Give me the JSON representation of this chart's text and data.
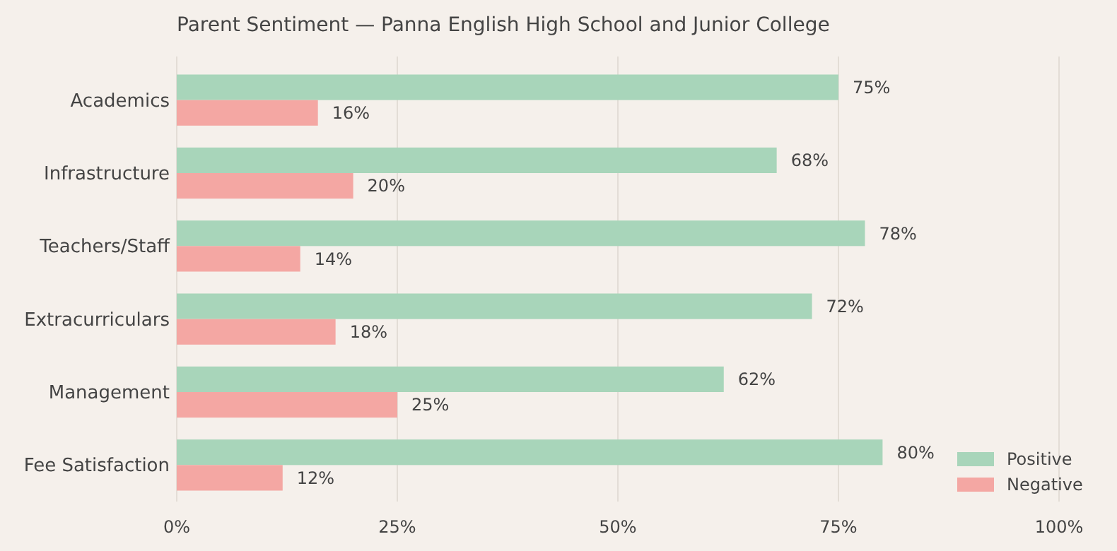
{
  "chart_data": {
    "type": "bar",
    "orientation": "horizontal",
    "title": "Parent Sentiment — Panna English High School and Junior College",
    "categories": [
      "Academics",
      "Infrastructure",
      "Teachers/Staff",
      "Extracurriculars",
      "Management",
      "Fee Satisfaction"
    ],
    "series": [
      {
        "name": "Positive",
        "color": "#a8d5ba",
        "values": [
          75,
          68,
          78,
          72,
          62,
          80
        ],
        "value_labels": [
          "75%",
          "68%",
          "78%",
          "72%",
          "62%",
          "80%"
        ]
      },
      {
        "name": "Negative",
        "color": "#f4a7a3",
        "values": [
          16,
          20,
          14,
          18,
          25,
          12
        ],
        "value_labels": [
          "16%",
          "20%",
          "14%",
          "18%",
          "25%",
          "12%"
        ]
      }
    ],
    "xlim": [
      0,
      100
    ],
    "xticks": [
      {
        "value": 0,
        "label": "0%"
      },
      {
        "value": 25,
        "label": "25%"
      },
      {
        "value": 50,
        "label": "50%"
      },
      {
        "value": 75,
        "label": "75%"
      },
      {
        "value": 100,
        "label": "100%"
      }
    ],
    "grid": "x",
    "legend": "bottom right"
  }
}
